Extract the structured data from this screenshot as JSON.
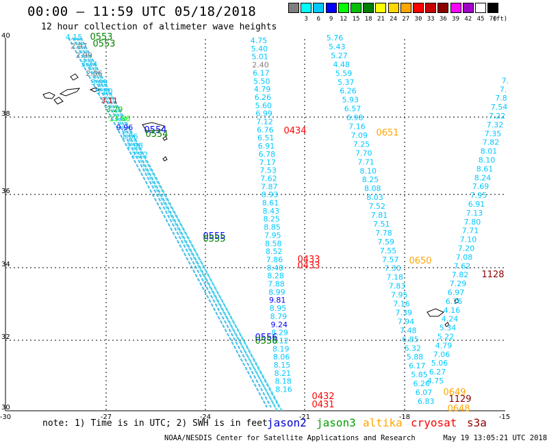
{
  "title": "00:00 – 11:59 UTC 05/18/2018",
  "subtitle": "12 hour collection of altimeter wave heights",
  "legend": {
    "unit": "(ft)",
    "bins": [
      {
        "label": "",
        "color": "#7f7f7f"
      },
      {
        "label": "3",
        "color": "#00ffff"
      },
      {
        "label": "6",
        "color": "#00c8ff"
      },
      {
        "label": "9",
        "color": "#0000ff"
      },
      {
        "label": "12",
        "color": "#00ff00"
      },
      {
        "label": "15",
        "color": "#00c000"
      },
      {
        "label": "18",
        "color": "#008000"
      },
      {
        "label": "21",
        "color": "#ffff00"
      },
      {
        "label": "24",
        "color": "#ffd700"
      },
      {
        "label": "27",
        "color": "#ffa500"
      },
      {
        "label": "30",
        "color": "#ff0000"
      },
      {
        "label": "33",
        "color": "#c80000"
      },
      {
        "label": "36",
        "color": "#8b0000"
      },
      {
        "label": "39",
        "color": "#ff00ff"
      },
      {
        "label": "42",
        "color": "#a000c8"
      },
      {
        "label": "45",
        "color": "#ffffff"
      },
      {
        "label": "70",
        "color": "#000000"
      }
    ]
  },
  "axes": {
    "lon_ticks": [
      "-30",
      "-27",
      "-24",
      "-21",
      "-18",
      "-15"
    ],
    "lat_ticks": [
      "40",
      "38",
      "36",
      "34",
      "32",
      "30"
    ]
  },
  "tracks": [
    {
      "name": "jason3-track-west",
      "values": [
        "4.15",
        "2.97",
        "2.99",
        "3.24",
        "2.06",
        "3.09",
        "3.80",
        "3.11",
        "3.29",
        "13.66",
        "9.96",
        "1.56",
        "1.98",
        "2.12"
      ],
      "colors": [
        "#00c8ff",
        "#7f7f7f",
        "#7f7f7f",
        "#00c8ff",
        "#7f7f7f",
        "#00c8ff",
        "#00c8ff",
        "#c80000",
        "#00c000",
        "#00ff00",
        "#0000ff",
        "#00c8ff",
        "#00c8ff",
        "#00c8ff"
      ]
    },
    {
      "name": "track-central",
      "values": [
        "4.75",
        "5.40",
        "5.01",
        "2.40",
        "6.17",
        "5.50",
        "4.79",
        "6.26",
        "5.60",
        "6.99",
        "7.12",
        "6.76",
        "6.51",
        "6.91",
        "6.78",
        "7.17",
        "7.53",
        "7.62",
        "7.87",
        "8.93",
        "8.61",
        "8.43",
        "8.25",
        "8.85",
        "7.95",
        "8.58",
        "8.52",
        "7.86",
        "8.40",
        "8.28",
        "7.88",
        "8.99",
        "9.81",
        "8.95",
        "8.79",
        "9.24",
        "8.29",
        "8.12",
        "8.19",
        "8.06",
        "8.15",
        "8.21",
        "8.18",
        "8.16"
      ],
      "colors": [
        "#00c8ff",
        "#00c8ff",
        "#00c8ff",
        "#7f7f7f",
        "#00c8ff",
        "#00c8ff",
        "#00c8ff",
        "#00c8ff",
        "#00c8ff",
        "#00c8ff",
        "#00c8ff",
        "#00c8ff",
        "#00c8ff",
        "#00c8ff",
        "#00c8ff",
        "#00c8ff",
        "#00c8ff",
        "#00c8ff",
        "#00c8ff",
        "#00c8ff",
        "#00c8ff",
        "#00c8ff",
        "#00c8ff",
        "#00c8ff",
        "#00c8ff",
        "#00c8ff",
        "#00c8ff",
        "#00c8ff",
        "#00c8ff",
        "#00c8ff",
        "#00c8ff",
        "#00c8ff",
        "#0000ff",
        "#00c8ff",
        "#00c8ff",
        "#0000ff",
        "#00c8ff",
        "#00c8ff",
        "#00c8ff",
        "#00c8ff",
        "#00c8ff",
        "#00c8ff",
        "#00c8ff",
        "#00c8ff"
      ]
    },
    {
      "name": "track-east",
      "values": [
        "5.76",
        "5.43",
        "5.27",
        "4.48",
        "5.59",
        "5.37",
        "6.26",
        "5.93",
        "6.57",
        "6.98",
        "7.16",
        "7.09",
        "7.25",
        "7.70",
        "7.71",
        "8.10",
        "8.25",
        "8.08",
        "8.03",
        "7.52",
        "7.81",
        "7.51",
        "7.78",
        "7.59",
        "7.55",
        "7.57",
        "7.30",
        "7.18",
        "7.83",
        "7.95",
        "7.16",
        "7.39",
        "7.94",
        "7.48",
        "6.85",
        "6.32",
        "5.88",
        "6.17",
        "5.85",
        "6.26",
        "6.07",
        "6.83"
      ],
      "colors": [
        "#00c8ff",
        "#00c8ff",
        "#00c8ff",
        "#00c8ff",
        "#00c8ff",
        "#00c8ff",
        "#00c8ff",
        "#00c8ff",
        "#00c8ff",
        "#00c8ff",
        "#00c8ff",
        "#00c8ff",
        "#00c8ff",
        "#00c8ff",
        "#00c8ff",
        "#00c8ff",
        "#00c8ff",
        "#00c8ff",
        "#00c8ff",
        "#00c8ff",
        "#00c8ff",
        "#00c8ff",
        "#00c8ff",
        "#00c8ff",
        "#00c8ff",
        "#00c8ff",
        "#00c8ff",
        "#00c8ff",
        "#00c8ff",
        "#00c8ff",
        "#00c8ff",
        "#00c8ff",
        "#00c8ff",
        "#00c8ff",
        "#00c8ff",
        "#00c8ff",
        "#00c8ff",
        "#00c8ff",
        "#00c8ff",
        "#00c8ff",
        "#00c8ff",
        "#00c8ff"
      ]
    },
    {
      "name": "track-far-east",
      "values": [
        "4.75",
        "6.27",
        "5.06",
        "7.06",
        "4.79",
        "5.22",
        "5.34",
        "4.24",
        "4.16",
        "6.76",
        "6.97",
        "7.29",
        "7.82",
        "7.62",
        "7.08",
        "7.20",
        "7.10",
        "7.71",
        "7.80",
        "7.13",
        "6.91",
        "7.95",
        "7.69",
        "8.24",
        "8.61",
        "8.10",
        "8.01",
        "7.82",
        "7.35",
        "7.32",
        "7.22",
        "7.54",
        "7.8",
        "7.",
        "7."
      ],
      "colors": [
        "#00c8ff",
        "#00c8ff",
        "#00c8ff",
        "#00c8ff",
        "#00c8ff",
        "#00c8ff",
        "#00c8ff",
        "#00c8ff",
        "#00c8ff",
        "#00c8ff",
        "#00c8ff",
        "#00c8ff",
        "#00c8ff",
        "#00c8ff",
        "#00c8ff",
        "#00c8ff",
        "#00c8ff",
        "#00c8ff",
        "#00c8ff",
        "#00c8ff",
        "#00c8ff",
        "#00c8ff",
        "#00c8ff",
        "#00c8ff",
        "#00c8ff",
        "#00c8ff",
        "#00c8ff",
        "#00c8ff",
        "#00c8ff",
        "#00c8ff",
        "#00c8ff",
        "#00c8ff",
        "#00c8ff",
        "#00c8ff",
        "#00c8ff"
      ]
    }
  ],
  "time_labels": [
    {
      "text": "0553",
      "color": "#008000"
    },
    {
      "text": "0553",
      "color": "#008000"
    },
    {
      "text": "0554",
      "color": "#0000ff"
    },
    {
      "text": "0554",
      "color": "#008000"
    },
    {
      "text": "0555",
      "color": "#0000ff"
    },
    {
      "text": "0555",
      "color": "#008000"
    },
    {
      "text": "0556",
      "color": "#0000ff"
    },
    {
      "text": "0556",
      "color": "#008000"
    },
    {
      "text": "0434",
      "color": "#ff0000"
    },
    {
      "text": "0433",
      "color": "#ff0000"
    },
    {
      "text": "0433",
      "color": "#ff0000"
    },
    {
      "text": "0432",
      "color": "#ff0000"
    },
    {
      "text": "0431",
      "color": "#ff0000"
    },
    {
      "text": "0651",
      "color": "#ffa500"
    },
    {
      "text": "0650",
      "color": "#ffa500"
    },
    {
      "text": "0649",
      "color": "#ffa500"
    },
    {
      "text": "0648",
      "color": "#ffa500"
    },
    {
      "text": "1128",
      "color": "#8b0000"
    },
    {
      "text": "1129",
      "color": "#8b0000"
    }
  ],
  "note": "note: 1) Time is in UTC; 2) SWH is in feet",
  "satellites": [
    {
      "name": "jason2",
      "color": "#0000cc"
    },
    {
      "name": "jason3",
      "color": "#00a000"
    },
    {
      "name": "altika",
      "color": "#ffa500"
    },
    {
      "name": "cryosat",
      "color": "#ff0000"
    },
    {
      "name": "s3a",
      "color": "#8b0000"
    }
  ],
  "credit": "NOAA/NESDIS Center for Satellite Applications and Research",
  "timestamp": "May 19 13:05:21 UTC 2018"
}
